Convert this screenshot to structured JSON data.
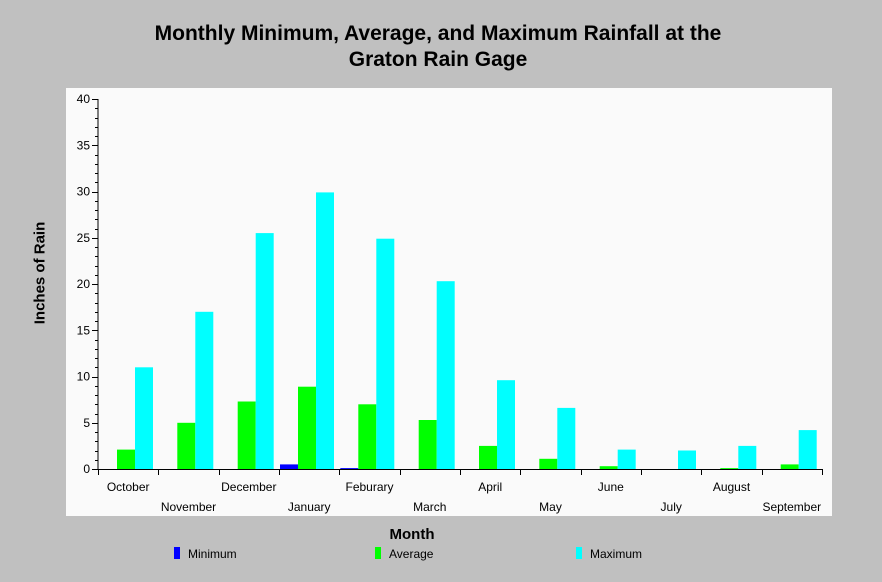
{
  "chart_data": {
    "type": "bar",
    "title": "Monthly Minimum, Average, and Maximum Rainfall at the Graton Rain Gage",
    "title_lines": [
      "Monthly Minimum, Average, and Maximum Rainfall at the",
      "Graton Rain Gage"
    ],
    "xlabel": "Month",
    "ylabel": "Inches of Rain",
    "ylim": [
      0,
      40
    ],
    "yticks": [
      0,
      5,
      10,
      15,
      20,
      25,
      30,
      35,
      40
    ],
    "categories": [
      "October",
      "November",
      "December",
      "January",
      "Feburary",
      "March",
      "April",
      "May",
      "June",
      "July",
      "August",
      "September"
    ],
    "series": [
      {
        "name": "Minimum",
        "color": "#0000ff",
        "values": [
          0,
          0,
          0,
          0.5,
          0.1,
          0,
          0,
          0,
          0,
          0,
          0,
          0
        ]
      },
      {
        "name": "Average",
        "color": "#00ff00",
        "values": [
          2.1,
          5.0,
          7.3,
          8.9,
          7.0,
          5.3,
          2.5,
          1.1,
          0.3,
          0,
          0.1,
          0.5
        ]
      },
      {
        "name": "Maximum",
        "color": "#00ffff",
        "values": [
          11.0,
          17.0,
          25.5,
          29.9,
          24.9,
          20.3,
          9.6,
          6.6,
          2.1,
          2.0,
          2.5,
          4.2
        ]
      }
    ],
    "legend_position": "bottom",
    "grid": false
  }
}
